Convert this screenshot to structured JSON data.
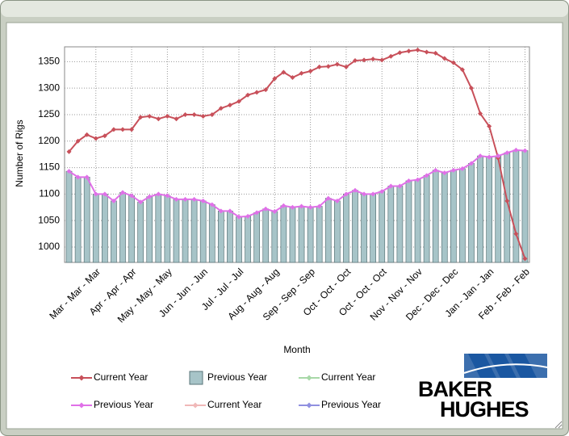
{
  "chart_data": {
    "type": "combo",
    "y_label": "Number of Rigs",
    "x_label": "Month",
    "categories": [
      null,
      null,
      null,
      "Mar - Mar - Mar",
      null,
      null,
      null,
      "Apr - Apr - Apr",
      null,
      null,
      null,
      "May - May - May",
      null,
      null,
      null,
      "Jun - Jun - Jun",
      null,
      null,
      null,
      "Jul - Jul - Jul",
      null,
      null,
      null,
      "Aug - Aug - Aug",
      null,
      null,
      null,
      "Sep - Sep - Sep",
      null,
      null,
      null,
      "Oct - Oct - Oct",
      null,
      null,
      null,
      "Oct - Oct - Oct",
      null,
      null,
      null,
      "Nov - Nov - Nov",
      null,
      null,
      null,
      "Dec - Dec - Dec",
      null,
      null,
      null,
      "Jan - Jan - Jan",
      null,
      null,
      null,
      "Feb - Feb - Feb"
    ],
    "ylim": [
      971,
      1378
    ],
    "yticks": [
      1000,
      1050,
      1100,
      1150,
      1200,
      1250,
      1300,
      1350
    ],
    "grid": true,
    "series": [
      {
        "name": "Current Year",
        "kind": "line",
        "color": "#c8505a",
        "values": [
          1180,
          1200,
          1212,
          1205,
          1210,
          1222,
          1222,
          1222,
          1245,
          1247,
          1242,
          1247,
          1242,
          1250,
          1250,
          1247,
          1250,
          1262,
          1268,
          1275,
          1287,
          1292,
          1297,
          1318,
          1330,
          1320,
          1328,
          1332,
          1340,
          1341,
          1345,
          1340,
          1352,
          1353,
          1355,
          1353,
          1360,
          1367,
          1370,
          1372,
          1368,
          1366,
          1356,
          1348,
          1335,
          1300,
          1252,
          1228,
          1168,
          1087,
          1025,
          978
        ]
      },
      {
        "name": "Previous Year",
        "kind": "bar",
        "color": "#a7c4c8",
        "values": [
          1143,
          1132,
          1132,
          1100,
          1100,
          1087,
          1103,
          1097,
          1085,
          1095,
          1100,
          1097,
          1090,
          1090,
          1090,
          1087,
          1080,
          1068,
          1068,
          1057,
          1058,
          1065,
          1072,
          1067,
          1078,
          1075,
          1077,
          1075,
          1077,
          1092,
          1087,
          1100,
          1107,
          1100,
          1100,
          1105,
          1115,
          1115,
          1125,
          1127,
          1135,
          1145,
          1140,
          1145,
          1148,
          1158,
          1172,
          1170,
          1172,
          1178,
          1183,
          1182
        ]
      },
      {
        "name": "Current Year",
        "kind": "line",
        "color": "#a8d8a8",
        "values": [
          null,
          null,
          null,
          null,
          null,
          null,
          null,
          null,
          null,
          null,
          null,
          null,
          null,
          null,
          null,
          null,
          null,
          null,
          null,
          null,
          null,
          null,
          null,
          null,
          null,
          null,
          null,
          null,
          null,
          null,
          null,
          null,
          null,
          null,
          null,
          null,
          null,
          null,
          null,
          null,
          null,
          null,
          null,
          null,
          null,
          null,
          null,
          null,
          null,
          null,
          null,
          null
        ]
      },
      {
        "name": "Previous Year",
        "kind": "line",
        "color": "#e070e8",
        "values": [
          1143,
          1132,
          1132,
          1100,
          1100,
          1087,
          1103,
          1097,
          1085,
          1095,
          1100,
          1097,
          1090,
          1090,
          1090,
          1087,
          1080,
          1068,
          1068,
          1057,
          1058,
          1065,
          1072,
          1067,
          1078,
          1075,
          1077,
          1075,
          1077,
          1092,
          1087,
          1100,
          1107,
          1100,
          1100,
          1105,
          1115,
          1115,
          1125,
          1127,
          1135,
          1145,
          1140,
          1145,
          1148,
          1158,
          1172,
          1170,
          1172,
          1178,
          1183,
          1182
        ]
      },
      {
        "name": "Current Year",
        "kind": "line",
        "color": "#f0b8b8",
        "values": [
          null,
          null,
          null,
          null,
          null,
          null,
          null,
          null,
          null,
          null,
          null,
          null,
          null,
          null,
          null,
          null,
          null,
          null,
          null,
          null,
          null,
          null,
          null,
          null,
          null,
          null,
          null,
          null,
          null,
          null,
          null,
          null,
          null,
          null,
          null,
          null,
          null,
          null,
          null,
          null,
          null,
          null,
          null,
          null,
          null,
          null,
          null,
          null,
          null,
          null,
          null,
          null
        ]
      },
      {
        "name": "Previous Year",
        "kind": "line",
        "color": "#9090e0",
        "values": [
          null,
          null,
          null,
          null,
          null,
          null,
          null,
          null,
          null,
          null,
          null,
          null,
          null,
          null,
          null,
          null,
          null,
          null,
          null,
          null,
          null,
          null,
          null,
          null,
          null,
          null,
          null,
          null,
          null,
          null,
          null,
          null,
          null,
          null,
          null,
          null,
          null,
          null,
          null,
          null,
          null,
          null,
          null,
          null,
          null,
          null,
          null,
          null,
          null,
          null,
          null,
          null
        ]
      }
    ],
    "logo": [
      "BAKER",
      "HUGHES"
    ]
  }
}
